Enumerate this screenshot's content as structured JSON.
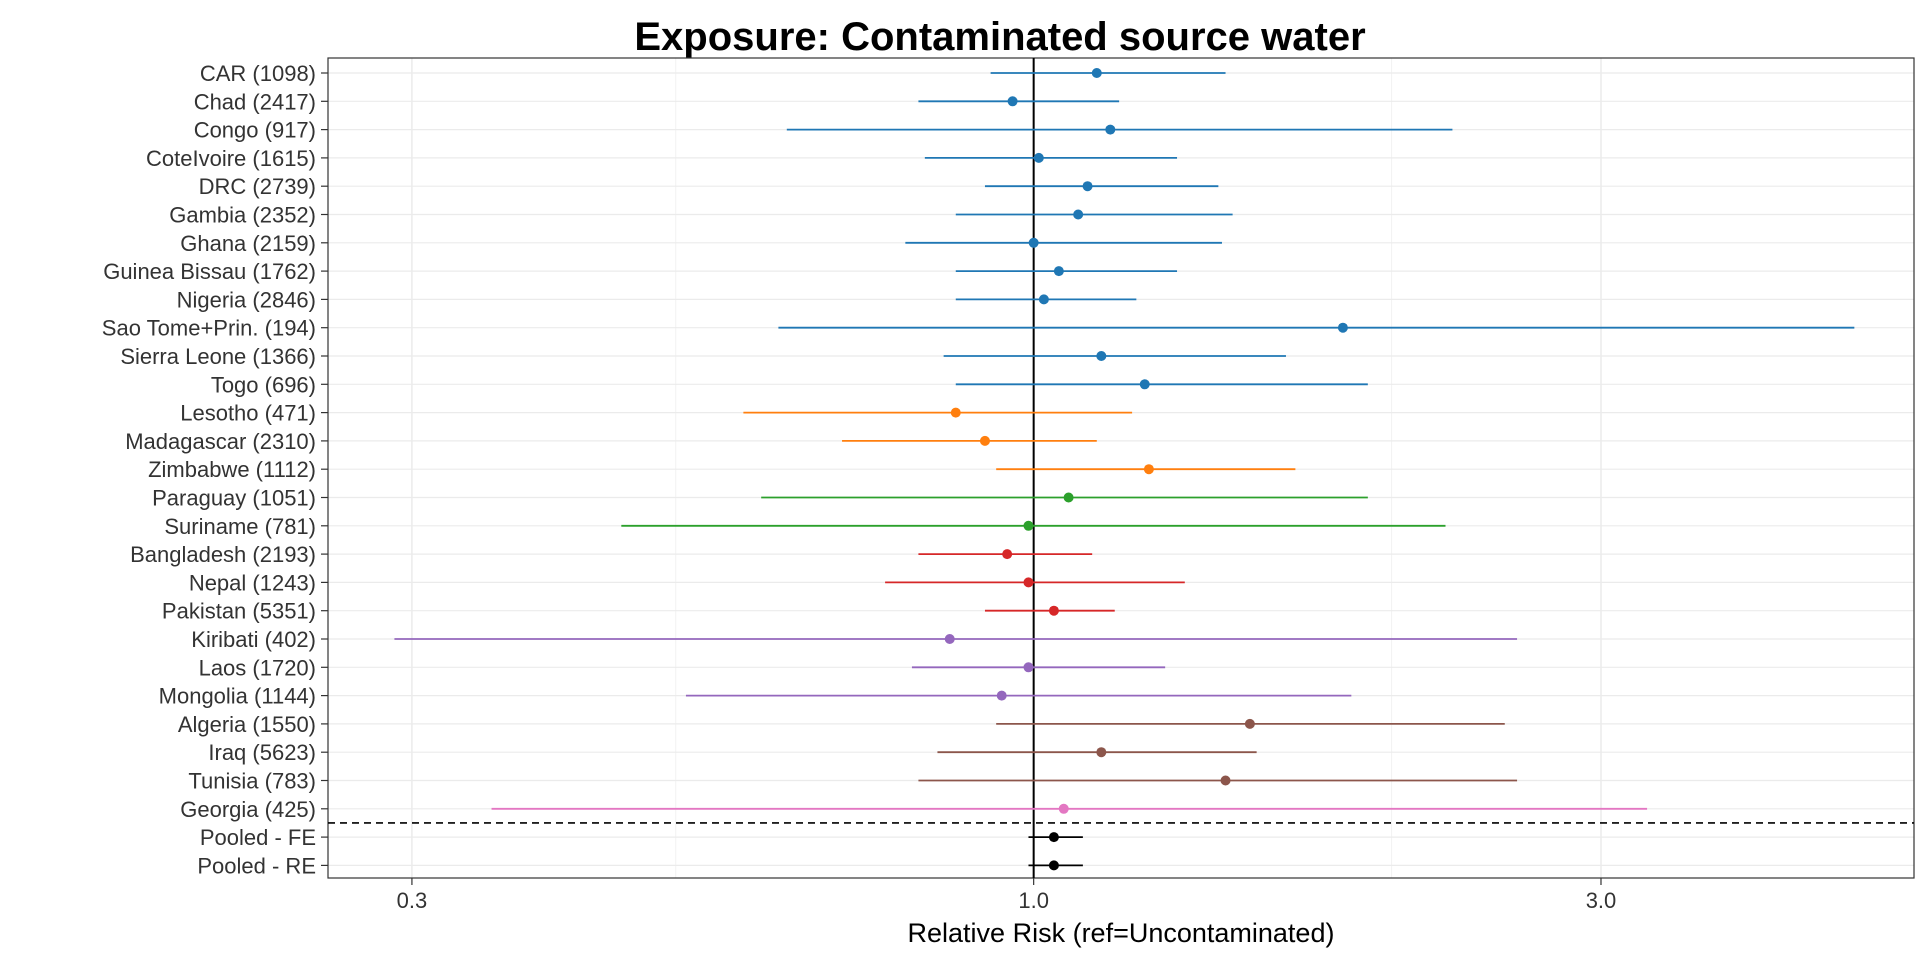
{
  "chart_data": {
    "type": "forest",
    "title": "Exposure: Contaminated source water",
    "xlabel": "Relative Risk (ref=Uncontaminated)",
    "x_scale": "log",
    "xlim": [
      0.255,
      5.5
    ],
    "x_ticks": [
      0.3,
      1.0,
      3.0
    ],
    "x_tick_labels": [
      "0.3",
      "1.0",
      "3.0"
    ],
    "reference_line": 1.0,
    "grid": true,
    "separator_after_row": "Georgia (425)",
    "rows": [
      {
        "label": "CAR (1098)",
        "est": 1.13,
        "lo": 0.92,
        "hi": 1.45,
        "color": "#1f77b4"
      },
      {
        "label": "Chad (2417)",
        "est": 0.96,
        "lo": 0.8,
        "hi": 1.18,
        "color": "#1f77b4"
      },
      {
        "label": "Congo (917)",
        "est": 1.16,
        "lo": 0.62,
        "hi": 2.25,
        "color": "#1f77b4"
      },
      {
        "label": "CoteIvoire (1615)",
        "est": 1.01,
        "lo": 0.81,
        "hi": 1.32,
        "color": "#1f77b4"
      },
      {
        "label": "DRC (2739)",
        "est": 1.11,
        "lo": 0.91,
        "hi": 1.43,
        "color": "#1f77b4"
      },
      {
        "label": "Gambia (2352)",
        "est": 1.09,
        "lo": 0.86,
        "hi": 1.47,
        "color": "#1f77b4"
      },
      {
        "label": "Ghana (2159)",
        "est": 1.0,
        "lo": 0.78,
        "hi": 1.44,
        "color": "#1f77b4"
      },
      {
        "label": "Guinea Bissau (1762)",
        "est": 1.05,
        "lo": 0.86,
        "hi": 1.32,
        "color": "#1f77b4"
      },
      {
        "label": "Nigeria (2846)",
        "est": 1.02,
        "lo": 0.86,
        "hi": 1.22,
        "color": "#1f77b4"
      },
      {
        "label": "Sao Tome+Prin. (194)",
        "est": 1.82,
        "lo": 0.61,
        "hi": 4.9,
        "color": "#1f77b4"
      },
      {
        "label": "Sierra Leone (1366)",
        "est": 1.14,
        "lo": 0.84,
        "hi": 1.63,
        "color": "#1f77b4"
      },
      {
        "label": "Togo (696)",
        "est": 1.24,
        "lo": 0.86,
        "hi": 1.91,
        "color": "#1f77b4"
      },
      {
        "label": "Lesotho (471)",
        "est": 0.86,
        "lo": 0.57,
        "hi": 1.21,
        "color": "#ff7f0e"
      },
      {
        "label": "Madagascar (2310)",
        "est": 0.91,
        "lo": 0.69,
        "hi": 1.13,
        "color": "#ff7f0e"
      },
      {
        "label": "Zimbabwe (1112)",
        "est": 1.25,
        "lo": 0.93,
        "hi": 1.66,
        "color": "#ff7f0e"
      },
      {
        "label": "Paraguay (1051)",
        "est": 1.07,
        "lo": 0.59,
        "hi": 1.91,
        "color": "#2ca02c"
      },
      {
        "label": "Suriname (781)",
        "est": 0.99,
        "lo": 0.45,
        "hi": 2.22,
        "color": "#2ca02c"
      },
      {
        "label": "Bangladesh (2193)",
        "est": 0.95,
        "lo": 0.8,
        "hi": 1.12,
        "color": "#d62728"
      },
      {
        "label": "Nepal (1243)",
        "est": 0.99,
        "lo": 0.75,
        "hi": 1.34,
        "color": "#d62728"
      },
      {
        "label": "Pakistan (5351)",
        "est": 1.04,
        "lo": 0.91,
        "hi": 1.17,
        "color": "#d62728"
      },
      {
        "label": "Kiribati (402)",
        "est": 0.85,
        "lo": 0.29,
        "hi": 2.55,
        "color": "#9467bd"
      },
      {
        "label": "Laos (1720)",
        "est": 0.99,
        "lo": 0.79,
        "hi": 1.29,
        "color": "#9467bd"
      },
      {
        "label": "Mongolia (1144)",
        "est": 0.94,
        "lo": 0.51,
        "hi": 1.85,
        "color": "#9467bd"
      },
      {
        "label": "Algeria (1550)",
        "est": 1.52,
        "lo": 0.93,
        "hi": 2.49,
        "color": "#8c564b"
      },
      {
        "label": "Iraq (5623)",
        "est": 1.14,
        "lo": 0.83,
        "hi": 1.54,
        "color": "#8c564b"
      },
      {
        "label": "Tunisia (783)",
        "est": 1.45,
        "lo": 0.8,
        "hi": 2.55,
        "color": "#8c564b"
      },
      {
        "label": "Georgia (425)",
        "est": 1.06,
        "lo": 0.35,
        "hi": 3.28,
        "color": "#e377c2"
      },
      {
        "label": "Pooled - FE",
        "est": 1.04,
        "lo": 0.99,
        "hi": 1.1,
        "color": "#000000"
      },
      {
        "label": "Pooled - RE",
        "est": 1.04,
        "lo": 0.99,
        "hi": 1.1,
        "color": "#000000"
      }
    ]
  }
}
